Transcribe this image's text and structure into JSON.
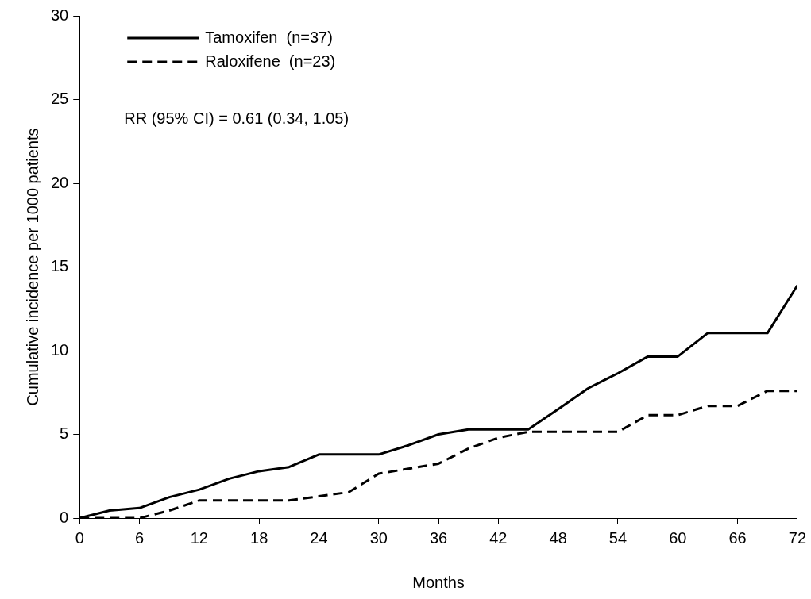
{
  "chart_data": {
    "type": "line",
    "xlabel": "Months",
    "ylabel": "Cumulative incidence per 1000 patients",
    "x": [
      0,
      3,
      6,
      9,
      12,
      15,
      18,
      21,
      24,
      27,
      30,
      33,
      36,
      39,
      42,
      45,
      48,
      51,
      54,
      57,
      60,
      63,
      66,
      69,
      72
    ],
    "series": [
      {
        "name": "Tamoxifen  (n=37)",
        "color": "#000000",
        "line_style": "solid",
        "values": [
          0,
          0.45,
          0.6,
          1.25,
          1.7,
          2.35,
          2.8,
          3.05,
          3.8,
          3.8,
          3.8,
          4.35,
          5.0,
          5.3,
          5.3,
          5.3,
          6.5,
          7.75,
          8.65,
          9.65,
          9.65,
          11.05,
          11.05,
          11.05,
          13.9
        ]
      },
      {
        "name": "Raloxifene  (n=23)",
        "color": "#000000",
        "line_style": "dashed",
        "values": [
          0,
          0,
          0,
          0.45,
          1.05,
          1.05,
          1.05,
          1.05,
          1.3,
          1.55,
          2.65,
          2.95,
          3.25,
          4.15,
          4.8,
          5.15,
          5.15,
          5.15,
          5.15,
          6.15,
          6.15,
          6.7,
          6.7,
          7.6,
          7.6
        ]
      }
    ],
    "xlim": [
      0,
      72
    ],
    "xticks": [
      0,
      6,
      12,
      18,
      24,
      30,
      36,
      42,
      48,
      54,
      60,
      66,
      72
    ],
    "ylim": [
      0,
      30
    ],
    "yticks": [
      0,
      5,
      10,
      15,
      20,
      25,
      30
    ],
    "grid": false,
    "legend": "top left",
    "marker": "none",
    "annotations": [
      "RR (95% CI) = 0.61 (0.34, 1.05)"
    ]
  }
}
